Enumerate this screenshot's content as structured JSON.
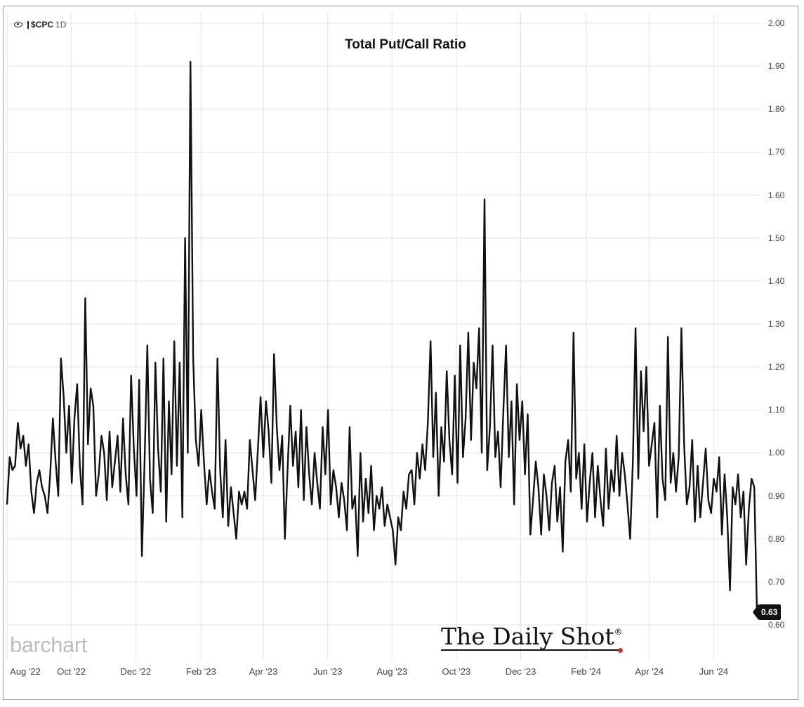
{
  "header": {
    "symbol": "$CPC",
    "timeframe": "1D",
    "eye_icon": "eye-icon"
  },
  "brand": {
    "left_logo": "barchart",
    "watermark": "The Daily Shot",
    "watermark_mark": "®"
  },
  "last_value_label": "0.63",
  "colors": {
    "line": "#111111",
    "grid": "#e3e3e3",
    "badge": "#111111",
    "brand_gray": "#bdbdbd",
    "accent_dot": "#c0392b"
  },
  "chart_data": {
    "type": "line",
    "title": "Total Put/Call Ratio",
    "xlabel": "",
    "ylabel": "",
    "ylim": [
      0.55,
      2.0
    ],
    "y_ticks": [
      "2.00",
      "1.90",
      "1.80",
      "1.70",
      "1.60",
      "1.50",
      "1.40",
      "1.30",
      "1.20",
      "1.10",
      "1.00",
      "0.90",
      "0.80",
      "0.70",
      "0.60"
    ],
    "x_ticks": [
      "Aug '22",
      "Oct '22",
      "Dec '22",
      "Feb '23",
      "Apr '23",
      "Jun '23",
      "Aug '23",
      "Oct '23",
      "Dec '23",
      "Feb '24",
      "Apr '24",
      "Jun '24"
    ],
    "x_range": [
      "2022-08-01",
      "2024-07-12"
    ],
    "grid": true,
    "last_value": 0.63,
    "series": [
      {
        "x_start": "2022-08-01",
        "x_end": "2024-07-12",
        "values": [
          0.88,
          0.99,
          0.96,
          0.97,
          1.07,
          1.01,
          1.04,
          0.97,
          1.02,
          0.91,
          0.86,
          0.93,
          0.96,
          0.92,
          0.9,
          0.86,
          0.95,
          1.08,
          0.98,
          0.9,
          1.22,
          1.13,
          1.0,
          1.11,
          0.93,
          1.08,
          1.16,
          0.97,
          0.88,
          1.36,
          1.02,
          1.15,
          1.11,
          0.9,
          0.95,
          1.04,
          1.0,
          0.89,
          1.05,
          0.92,
          0.98,
          1.04,
          0.91,
          1.08,
          0.95,
          0.88,
          1.18,
          1.01,
          0.9,
          1.17,
          0.76,
          0.98,
          1.25,
          0.94,
          0.86,
          1.21,
          1.01,
          0.91,
          1.22,
          0.84,
          1.12,
          0.95,
          1.26,
          0.97,
          1.21,
          0.85,
          1.5,
          1.0,
          1.91,
          1.22,
          1.03,
          0.97,
          1.1,
          0.98,
          0.88,
          0.96,
          0.91,
          0.87,
          1.22,
          0.96,
          0.85,
          1.03,
          0.83,
          0.92,
          0.86,
          0.8,
          0.91,
          0.88,
          0.91,
          0.87,
          1.03,
          0.96,
          0.89,
          1.01,
          1.13,
          0.99,
          1.12,
          1.05,
          0.93,
          1.23,
          1.06,
          0.96,
          1.04,
          0.8,
          0.96,
          1.11,
          0.97,
          1.05,
          0.92,
          1.1,
          0.89,
          1.06,
          0.95,
          0.88,
          1.0,
          0.93,
          0.87,
          1.06,
          0.95,
          1.1,
          0.88,
          0.96,
          0.92,
          0.85,
          0.93,
          0.89,
          0.82,
          1.06,
          0.87,
          0.9,
          0.76,
          1.0,
          0.84,
          0.94,
          0.86,
          0.97,
          0.82,
          0.9,
          0.87,
          0.92,
          0.83,
          0.88,
          0.85,
          0.82,
          0.74,
          0.85,
          0.82,
          0.91,
          0.87,
          0.95,
          0.96,
          0.88,
          1.0,
          0.94,
          1.02,
          0.96,
          1.07,
          1.26,
          0.99,
          1.14,
          0.9,
          1.06,
          0.98,
          1.19,
          1.03,
          0.95,
          1.18,
          0.93,
          1.25,
          0.99,
          1.08,
          1.28,
          1.03,
          1.21,
          1.15,
          1.29,
          1.0,
          1.59,
          0.96,
          1.06,
          1.25,
          0.99,
          1.05,
          0.92,
          1.1,
          1.25,
          0.99,
          1.12,
          0.88,
          1.16,
          1.03,
          1.12,
          0.95,
          1.09,
          0.81,
          0.89,
          0.98,
          0.92,
          0.81,
          0.95,
          0.9,
          0.82,
          0.93,
          0.97,
          0.84,
          0.92,
          0.77,
          0.98,
          1.03,
          0.91,
          1.28,
          0.94,
          1.0,
          0.87,
          1.02,
          0.84,
          0.93,
          1.0,
          0.85,
          0.97,
          0.89,
          0.83,
          1.01,
          0.87,
          0.96,
          0.91,
          1.04,
          0.9,
          1.0,
          0.95,
          0.88,
          0.8,
          0.98,
          1.29,
          0.94,
          1.19,
          1.05,
          1.2,
          0.97,
          1.02,
          1.07,
          0.85,
          1.11,
          0.94,
          0.89,
          1.27,
          0.93,
          1.0,
          0.91,
          0.99,
          1.29,
          1.02,
          0.88,
          0.92,
          1.03,
          0.84,
          0.97,
          0.85,
          0.93,
          1.01,
          0.89,
          0.86,
          0.94,
          0.91,
          0.99,
          0.81,
          0.95,
          0.85,
          0.68,
          0.92,
          0.88,
          0.95,
          0.85,
          0.91,
          0.74,
          0.87,
          0.94,
          0.92,
          0.63
        ]
      }
    ]
  }
}
